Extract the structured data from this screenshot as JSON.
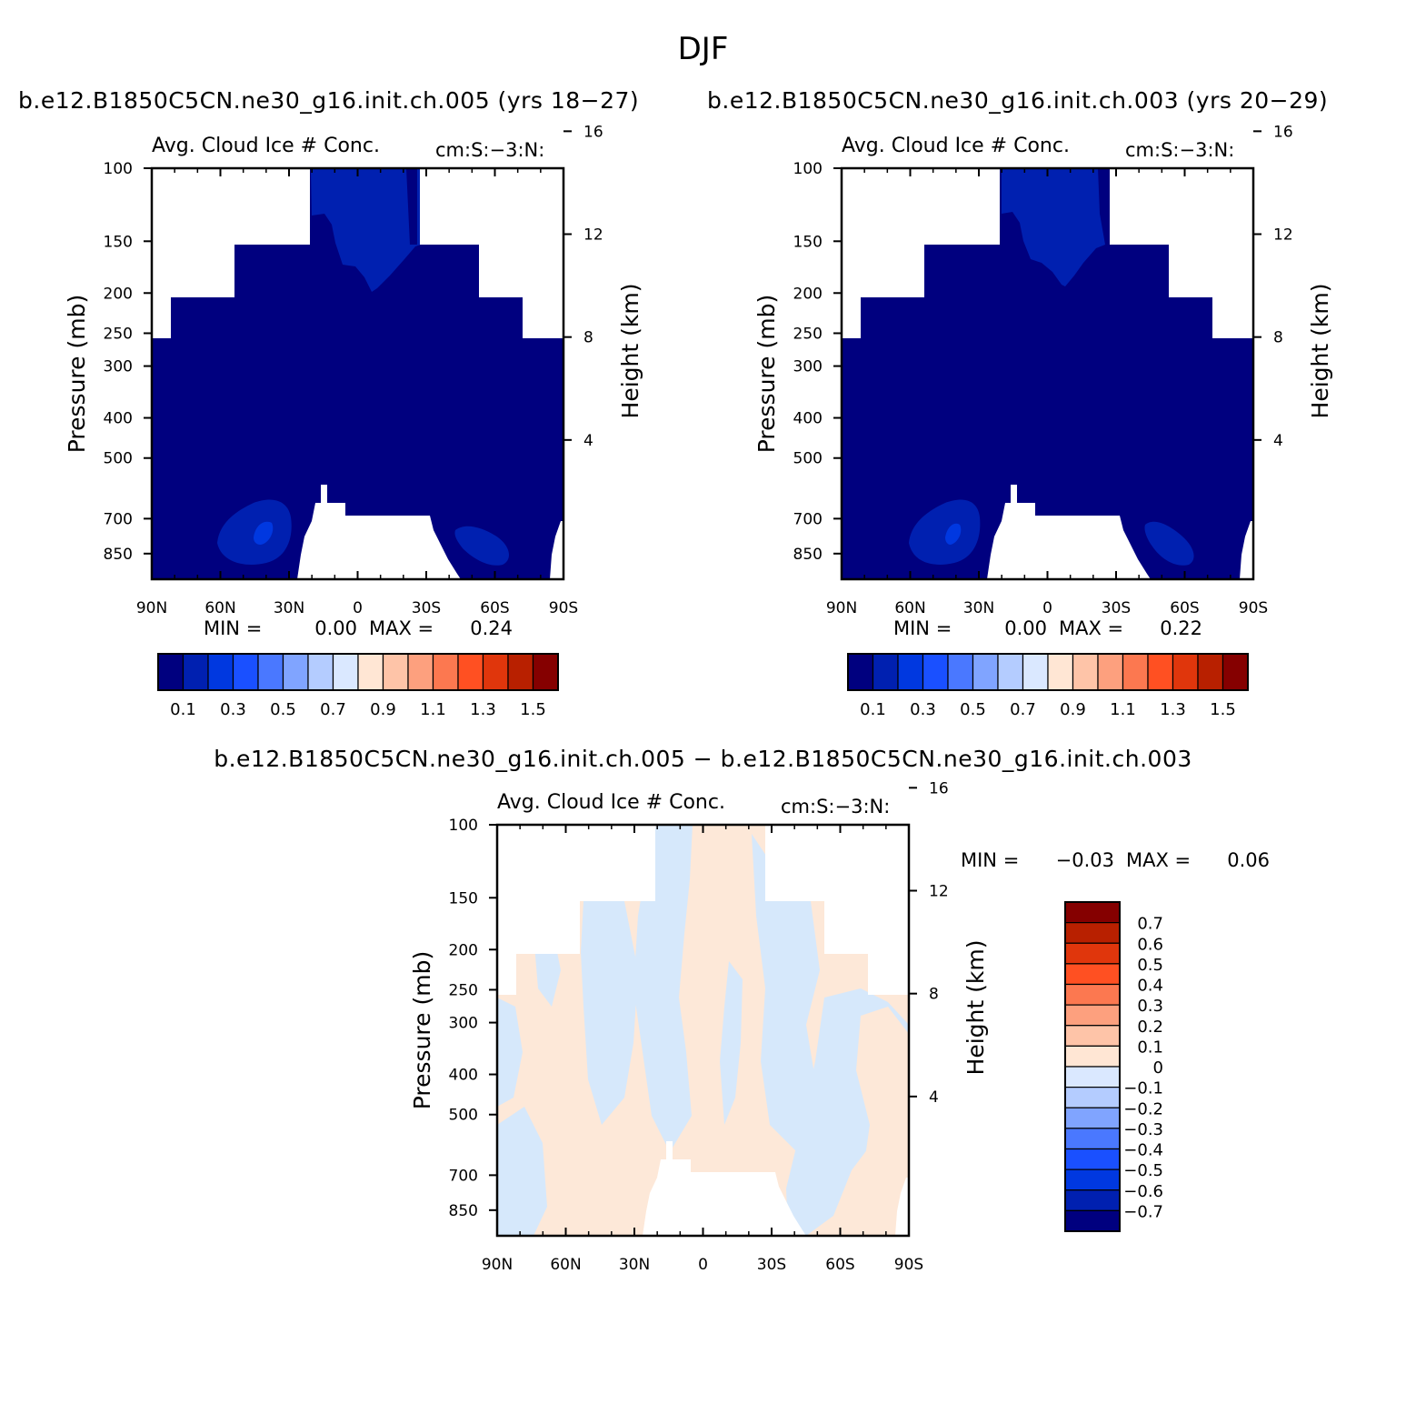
{
  "figure": {
    "title": "DJF",
    "diff_title": "b.e12.B1850C5CN.ne30_g16.init.ch.005 − b.e12.B1850C5CN.ne30_g16.init.ch.003"
  },
  "chart_data": [
    {
      "type": "heatmap",
      "case_title": "b.e12.B1850C5CN.ne30_g16.init.ch.005 (yrs 18−27)",
      "title": "Avg. Cloud Ice # Conc.",
      "units": "cm:S:−3:N:",
      "ylabel": "Pressure (mb)",
      "ylabel_right": "Height (km)",
      "x_ticks": [
        "90N",
        "60N",
        "30N",
        "0",
        "30S",
        "60S",
        "90S"
      ],
      "y_ticks": [
        "100",
        "150",
        "200",
        "250",
        "300",
        "400",
        "500",
        "700",
        "850"
      ],
      "y2_ticks": [
        "16",
        "12",
        "8",
        "4"
      ],
      "stats": {
        "min_label": "MIN =",
        "min": "0.00",
        "max_label": "MAX =",
        "max": "0.24"
      },
      "colorbar_labels": [
        "0.1",
        "0.3",
        "0.5",
        "0.7",
        "0.9",
        "1.1",
        "1.3",
        "1.5"
      ],
      "dominant_level_color": "#000080",
      "ice_maxima": [
        {
          "lat": "45N",
          "p_mb": 700
        },
        {
          "lat": "20N-5S",
          "p_mb": 130
        }
      ]
    },
    {
      "type": "heatmap",
      "case_title": "b.e12.B1850C5CN.ne30_g16.init.ch.003 (yrs 20−29)",
      "title": "Avg. Cloud Ice # Conc.",
      "units": "cm:S:−3:N:",
      "ylabel": "Pressure (mb)",
      "ylabel_right": "Height (km)",
      "x_ticks": [
        "90N",
        "60N",
        "30N",
        "0",
        "30S",
        "60S",
        "90S"
      ],
      "y_ticks": [
        "100",
        "150",
        "200",
        "250",
        "300",
        "400",
        "500",
        "700",
        "850"
      ],
      "y2_ticks": [
        "16",
        "12",
        "8",
        "4"
      ],
      "stats": {
        "min_label": "MIN =",
        "min": "0.00",
        "max_label": "MAX =",
        "max": "0.22"
      },
      "colorbar_labels": [
        "0.1",
        "0.3",
        "0.5",
        "0.7",
        "0.9",
        "1.1",
        "1.3",
        "1.5"
      ],
      "dominant_level_color": "#000080"
    },
    {
      "type": "heatmap",
      "title": "Avg. Cloud Ice # Conc.",
      "units": "cm:S:−3:N:",
      "ylabel": "Pressure (mb)",
      "ylabel_right": "Height (km)",
      "x_ticks": [
        "90N",
        "60N",
        "30N",
        "0",
        "30S",
        "60S",
        "90S"
      ],
      "y_ticks": [
        "100",
        "150",
        "200",
        "250",
        "300",
        "400",
        "500",
        "700",
        "850"
      ],
      "y2_ticks": [
        "16",
        "12",
        "8",
        "4"
      ],
      "stats": {
        "min_label": "MIN =",
        "min": "−0.03",
        "max_label": "MAX =",
        "max": "0.06"
      },
      "colorbar_labels": [
        "0.7",
        "0.6",
        "0.5",
        "0.4",
        "0.3",
        "0.2",
        "0.1",
        "0",
        "−0.1",
        "−0.2",
        "−0.3",
        "−0.4",
        "−0.5",
        "−0.6",
        "−0.7"
      ],
      "positive_color": "#fde8d8",
      "negative_color": "#d6e8fb"
    }
  ],
  "colors": {
    "abs_scale": [
      "#00007f",
      "#0020b0",
      "#0038e0",
      "#1a50ff",
      "#4a78ff",
      "#80a4ff",
      "#b4ccff",
      "#dae8ff",
      "#ffe6d4",
      "#fec4a8",
      "#fda07e",
      "#fc7850",
      "#ff5022",
      "#e0360c",
      "#b82000",
      "#850000"
    ],
    "diff_scale": [
      "#850000",
      "#b82000",
      "#e0360c",
      "#ff5022",
      "#fc7850",
      "#fda07e",
      "#fec4a8",
      "#ffe6d4",
      "#dae8ff",
      "#b4ccff",
      "#80a4ff",
      "#4a78ff",
      "#1a50ff",
      "#0038e0",
      "#0020b0",
      "#00007f"
    ]
  }
}
